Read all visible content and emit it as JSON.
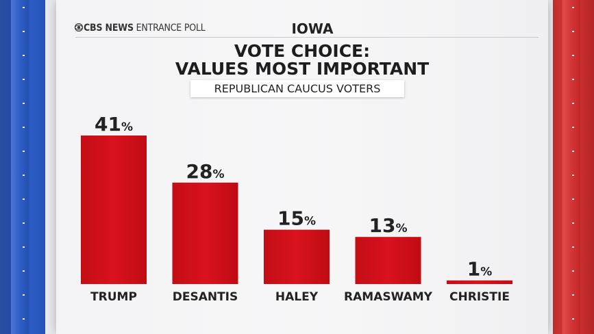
{
  "header": {
    "brand_primary": "CBS NEWS",
    "brand_secondary": "ENTRANCE POLL",
    "state": "IOWA"
  },
  "title_lines": [
    "VOTE CHOICE:",
    "VALUES MOST IMPORTANT"
  ],
  "subtitle": "REPUBLICAN CAUCUS VOTERS",
  "colors": {
    "bar": "#d9121c",
    "left_stripe": "#2552b7",
    "right_stripe": "#d03030"
  },
  "chart_data": {
    "type": "bar",
    "title": "VOTE CHOICE: VALUES MOST IMPORTANT",
    "subtitle": "REPUBLICAN CAUCUS VOTERS",
    "categories": [
      "TRUMP",
      "DESANTIS",
      "HALEY",
      "RAMASWAMY",
      "CHRISTIE"
    ],
    "values": [
      41,
      28,
      15,
      13,
      1
    ],
    "value_labels": [
      "41",
      "28",
      "15",
      "13",
      "1"
    ],
    "unit": "%",
    "ylim": [
      0,
      41
    ],
    "grid": false,
    "legend": "none"
  }
}
